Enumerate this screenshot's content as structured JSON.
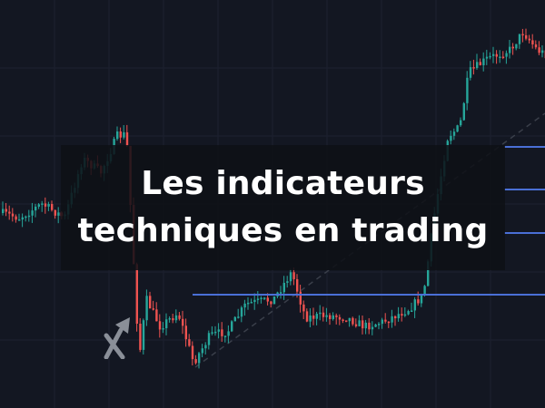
{
  "banner": {
    "title_line1": "Les indicateurs",
    "title_line2": "techniques en trading"
  },
  "colors": {
    "background": "#131722",
    "candle_up": "#26a69a",
    "candle_down": "#ef5350",
    "level_line": "#4a6fd6",
    "logo": "#8a8f98"
  },
  "icons": {
    "logo": "x-arrow-logo-icon"
  }
}
